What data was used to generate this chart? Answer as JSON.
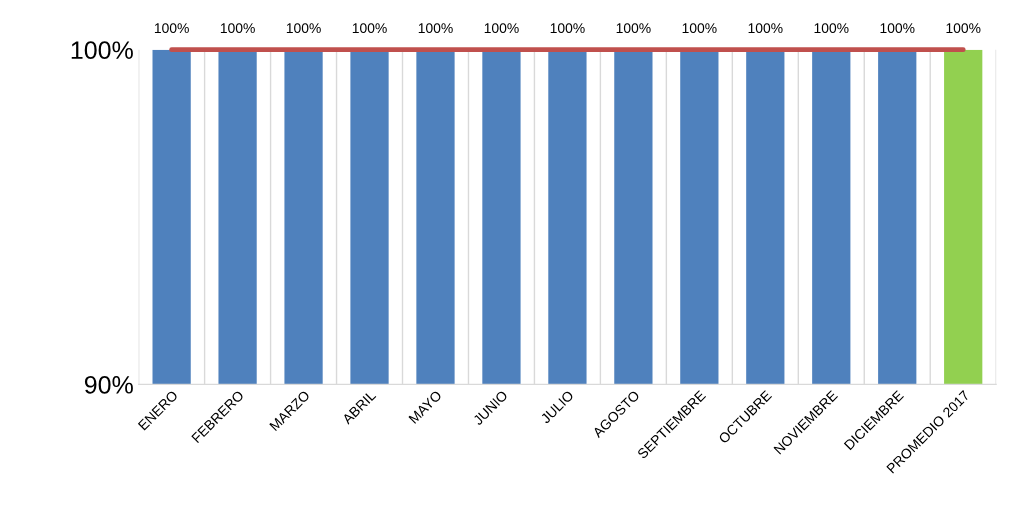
{
  "chart_data": {
    "type": "bar",
    "categories": [
      "ENERO",
      "FEBRERO",
      "MARZO",
      "ABRIL",
      "MAYO",
      "JUNIO",
      "JULIO",
      "AGOSTO",
      "SEPTIEMBRE",
      "OCTUBRE",
      "NOVIEMBRE",
      "DICIEMBRE",
      "PROMEDIO 2017"
    ],
    "series": [
      {
        "values": [
          100,
          100,
          100,
          100,
          100,
          100,
          100,
          100,
          100,
          100,
          100,
          100,
          100
        ],
        "colors": [
          "#4f81bd",
          "#4f81bd",
          "#4f81bd",
          "#4f81bd",
          "#4f81bd",
          "#4f81bd",
          "#4f81bd",
          "#4f81bd",
          "#4f81bd",
          "#4f81bd",
          "#4f81bd",
          "#4f81bd",
          "#92d050"
        ],
        "value_labels": [
          "100%",
          "100%",
          "100%",
          "100%",
          "100%",
          "100%",
          "100%",
          "100%",
          "100%",
          "100%",
          "100%",
          "100%",
          "100%"
        ]
      },
      {
        "type": "line",
        "color": "#c0504d",
        "values": [
          100,
          100,
          100,
          100,
          100,
          100,
          100,
          100,
          100,
          100,
          100,
          100,
          100
        ]
      }
    ],
    "ylim": [
      90,
      100
    ],
    "yticks": [
      {
        "value": 90,
        "label": "90%"
      },
      {
        "value": 100,
        "label": "100%"
      }
    ],
    "grid": "x",
    "legend": false,
    "marker": "none"
  }
}
